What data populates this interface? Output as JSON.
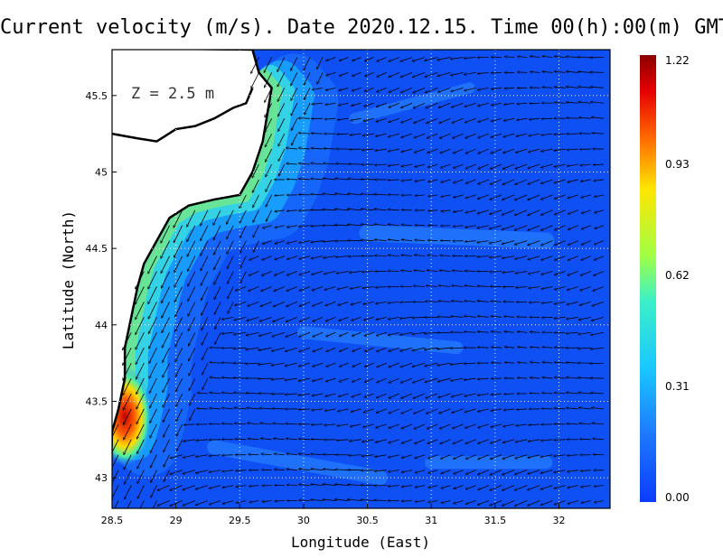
{
  "title": "Current velocity (m/s). Date 2020.12.15. Time 00(h):00(m) GMT",
  "depth_label": "Z = 2.5 m",
  "colorbar": {
    "ticks": [
      "1.22",
      "0.93",
      "0.62",
      "0.31",
      "0.00"
    ],
    "range": [
      0.0,
      1.22
    ],
    "colors": [
      "#0a3cff",
      "#1e8cff",
      "#19d2ff",
      "#8cff5a",
      "#ffe600",
      "#ff5a00",
      "#e60000",
      "#8c0000"
    ]
  },
  "chart_data": {
    "type": "heatmap",
    "title": "Current velocity (m/s). Date 2020.12.15. Time 00(h):00(m) GMT",
    "xlabel": "Longitude (East)",
    "ylabel": "Latitude (North)",
    "xlim": [
      28.5,
      32.4
    ],
    "ylim": [
      42.8,
      45.8
    ],
    "xticks": [
      "28.5",
      "29",
      "29.5",
      "30",
      "30.5",
      "31",
      "31.5",
      "32"
    ],
    "xtick_values": [
      28.5,
      29,
      29.5,
      30,
      30.5,
      31,
      31.5,
      32
    ],
    "yticks": [
      "43",
      "43.5",
      "44",
      "44.5",
      "45",
      "45.5"
    ],
    "ytick_values": [
      43,
      43.5,
      44,
      44.5,
      45,
      45.5
    ],
    "grid": true,
    "coastline_lonlat": [
      [
        29.6,
        45.8
      ],
      [
        29.65,
        45.65
      ],
      [
        29.75,
        45.55
      ],
      [
        29.72,
        45.4
      ],
      [
        29.68,
        45.2
      ],
      [
        29.6,
        45.0
      ],
      [
        29.5,
        44.85
      ],
      [
        29.3,
        44.82
      ],
      [
        29.1,
        44.78
      ],
      [
        28.95,
        44.7
      ],
      [
        28.85,
        44.55
      ],
      [
        28.75,
        44.4
      ],
      [
        28.7,
        44.25
      ],
      [
        28.65,
        44.05
      ],
      [
        28.6,
        43.85
      ],
      [
        28.6,
        43.65
      ],
      [
        28.55,
        43.45
      ],
      [
        28.5,
        43.3
      ]
    ],
    "coastline_detail": [
      [
        28.5,
        45.25
      ],
      [
        28.7,
        45.22
      ],
      [
        28.85,
        45.2
      ],
      [
        29.0,
        45.28
      ],
      [
        29.15,
        45.3
      ],
      [
        29.3,
        45.35
      ],
      [
        29.45,
        45.42
      ],
      [
        29.55,
        45.45
      ],
      [
        29.6,
        45.55
      ]
    ],
    "vector_field": {
      "lon_start": 28.55,
      "lon_step": 0.1,
      "lat_start": 42.85,
      "lat_step": 0.1,
      "notes": "Southwestward coastal jet along western shelf; westward flow offshore with eddies"
    },
    "speed_max_region": [
      28.6,
      43.4,
      1.22
    ]
  }
}
